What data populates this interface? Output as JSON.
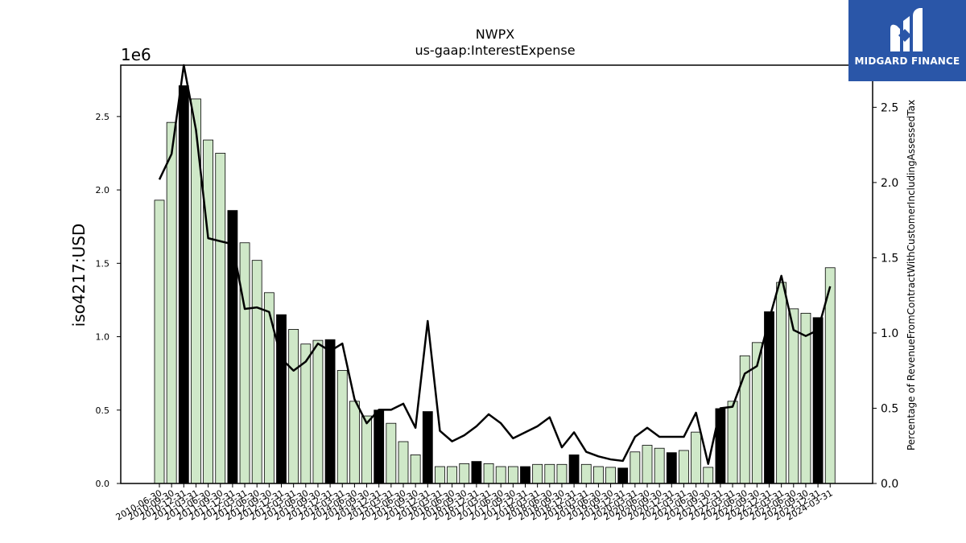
{
  "chart_data": {
    "type": "bar",
    "title": "NWPX",
    "subtitle": "us-gaap:InterestExpense",
    "ylabel": "iso4217:USD",
    "y_offset_label": "1e6",
    "ylim": [
      0,
      2850000
    ],
    "yticks": [
      "0.0",
      "0.5",
      "1.0",
      "1.5",
      "2.0",
      "2.5"
    ],
    "y2label": "Percentage of RevenueFromContractWithCustomerIncludingAssessedTax",
    "y2lim": [
      0,
      2.78
    ],
    "y2ticks": [
      "0.0",
      "0.5",
      "1.0",
      "1.5",
      "2.0",
      "2.5"
    ],
    "colors": {
      "bar": "#cfe8c8",
      "bar_highlight": "#000000",
      "line": "#000000"
    },
    "categories": [
      "2010-06-30",
      "2010-09-30",
      "2010-12-31",
      "2011-03-31",
      "2011-06-30",
      "2011-09-30",
      "2011-12-31",
      "2012-03-31",
      "2012-06-30",
      "2012-09-30",
      "2012-12-31",
      "2013-03-31",
      "2013-06-30",
      "2013-09-30",
      "2013-12-31",
      "2014-03-31",
      "2014-06-30",
      "2014-09-30",
      "2014-12-31",
      "2015-03-31",
      "2015-06-30",
      "2015-09-30",
      "2015-12-31",
      "2016-03-31",
      "2016-06-30",
      "2016-09-30",
      "2016-12-31",
      "2017-03-31",
      "2017-06-30",
      "2017-09-30",
      "2017-12-31",
      "2018-03-31",
      "2018-06-30",
      "2018-09-30",
      "2018-12-31",
      "2019-03-31",
      "2019-06-30",
      "2019-09-30",
      "2019-12-31",
      "2020-03-31",
      "2020-06-30",
      "2020-09-30",
      "2020-12-31",
      "2021-03-31",
      "2021-06-30",
      "2021-09-30",
      "2021-12-31",
      "2022-03-31",
      "2022-06-30",
      "2022-09-30",
      "2022-12-31",
      "2023-03-31",
      "2023-06-30",
      "2023-09-30",
      "2023-12-31",
      "2024-03-31"
    ],
    "tick_labels": [
      "2010-06-30",
      "2010-09-30",
      "2010-12-31",
      "2011-03-31",
      "2011-06-30",
      "2011-09-30",
      "2011-12-31",
      "2012-03-31",
      "2012-06-30",
      "2012-09-30",
      "2012-12-31",
      "2013-03-31",
      "2013-06-30",
      "2013-09-30",
      "2013-12-31",
      "2014-03-31",
      "2014-06-30",
      "2014-09-30",
      "2014-12-31",
      "2015-03-31",
      "2015-06-30",
      "2015-09-30",
      "2015-12-31",
      "2016-03-31",
      "2016-06-30",
      "2016-09-30",
      "2016-12-31",
      "2017-03-31",
      "2017-06-30",
      "2017-09-30",
      "2017-12-31",
      "2018-03-31",
      "2018-06-30",
      "2018-09-30",
      "2018-12-31",
      "2019-03-31",
      "2019-06-30",
      "2019-09-30",
      "2019-12-31",
      "2020-03-31",
      "2020-06-30",
      "2020-09-30",
      "2020-12-31",
      "2021-03-31",
      "2021-06-30",
      "2021-09-30",
      "2021-12-31",
      "2022-03-31",
      "2022-06-30",
      "2022-09-30",
      "2022-12-31",
      "2023-03-31",
      "2023-06-30",
      "2023-09-30",
      "2023-12-31",
      "2024-03-31"
    ],
    "series": [
      {
        "values": [
          1930000,
          2460000,
          2710000,
          2620000,
          2340000,
          2250000,
          1860000,
          1640000,
          1520000,
          1300000,
          1150000,
          1050000,
          950000,
          975000,
          980000,
          770000,
          560000,
          460000,
          500000,
          410000,
          285000,
          195000,
          490000,
          115000,
          115000,
          135000,
          150000,
          135000,
          115000,
          115000,
          115000,
          130000,
          130000,
          130000,
          195000,
          130000,
          115000,
          110000,
          105000,
          215000,
          260000,
          240000,
          210000,
          225000,
          350000,
          110000,
          510000,
          560000,
          870000,
          960000,
          1170000,
          1370000,
          1190000,
          1160000,
          1130000,
          1470000
        ],
        "highlight": [
          false,
          false,
          true,
          false,
          false,
          false,
          true,
          false,
          false,
          false,
          true,
          false,
          false,
          false,
          true,
          false,
          false,
          false,
          true,
          false,
          false,
          false,
          true,
          false,
          false,
          false,
          true,
          false,
          false,
          false,
          true,
          false,
          false,
          false,
          true,
          false,
          false,
          false,
          true,
          false,
          false,
          false,
          true,
          false,
          false,
          false,
          true,
          false,
          false,
          false,
          true,
          false,
          false,
          false,
          true,
          false
        ]
      },
      {
        "axis": "right",
        "values": [
          2.02,
          2.19,
          2.78,
          2.35,
          1.63,
          1.61,
          1.59,
          1.16,
          1.17,
          1.14,
          0.83,
          0.75,
          0.81,
          0.93,
          0.88,
          0.93,
          0.56,
          0.4,
          0.49,
          0.49,
          0.53,
          0.37,
          1.08,
          0.35,
          0.28,
          0.32,
          0.38,
          0.46,
          0.4,
          0.3,
          0.34,
          0.38,
          0.44,
          0.24,
          0.34,
          0.21,
          0.18,
          0.16,
          0.15,
          0.31,
          0.37,
          0.31,
          0.31,
          0.31,
          0.47,
          0.13,
          0.5,
          0.51,
          0.73,
          0.78,
          1.09,
          1.38,
          1.02,
          0.98,
          1.02,
          1.31
        ]
      }
    ],
    "grid": false
  },
  "logo": {
    "brand_text": "MIDGARD FINANCE",
    "icon": "midgard-logo-icon"
  }
}
